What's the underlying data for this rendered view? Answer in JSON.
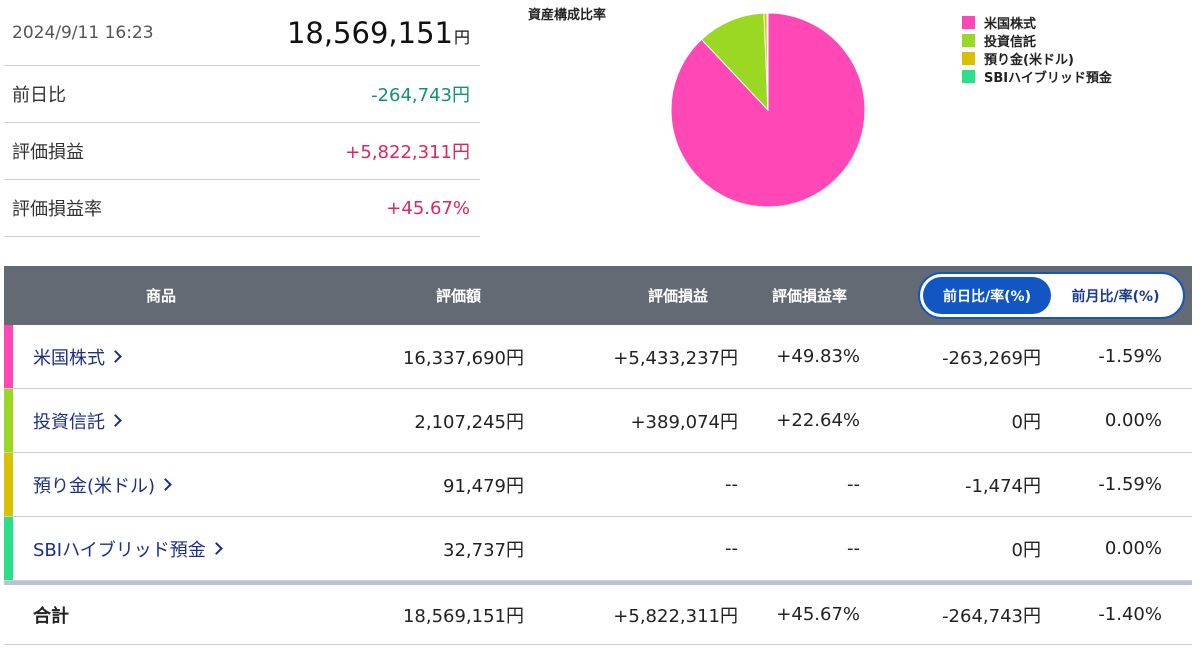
{
  "summary": {
    "datetime": "2024/9/11 16:23",
    "total": "18,569,151",
    "total_unit": "円",
    "rows": [
      {
        "label": "前日比",
        "value": "-264,743円",
        "sign": "neg"
      },
      {
        "label": "評価損益",
        "value": "+5,822,311円",
        "sign": "pos"
      },
      {
        "label": "評価損益率",
        "value": "+45.67%",
        "sign": "pos"
      }
    ]
  },
  "chart": {
    "title": "資産構成比率"
  },
  "chart_data": {
    "type": "pie",
    "title": "資産構成比率",
    "categories": [
      "米国株式",
      "投資信託",
      "預り金(米ドル)",
      "SBIハイブリッド預金"
    ],
    "values": [
      16337690,
      2107245,
      91479,
      32737
    ],
    "colors": [
      "#ff47b5",
      "#9ad823",
      "#d8c100",
      "#2be08a"
    ],
    "legend": "right"
  },
  "table": {
    "headers": {
      "product": "商品",
      "amount": "評価額",
      "pl": "評価損益",
      "pl_rate": "評価損益率"
    },
    "toggle": {
      "active": "前日比/率(%)",
      "inactive": "前月比/率(%)"
    },
    "rows": [
      {
        "name": "米国株式",
        "color": "#ff47b5",
        "amount": "16,337,690円",
        "pl": "+5,433,237円",
        "pl_sign": "pos",
        "pl_rate": "+49.83%",
        "pl_rate_sign": "pos",
        "day": "-263,269円",
        "day_sign": "neg",
        "day_rate": "-1.59%",
        "day_rate_sign": "neg"
      },
      {
        "name": "投資信託",
        "color": "#9ad823",
        "amount": "2,107,245円",
        "pl": "+389,074円",
        "pl_sign": "pos",
        "pl_rate": "+22.64%",
        "pl_rate_sign": "pos",
        "day": "0円",
        "day_sign": "",
        "day_rate": "0.00%",
        "day_rate_sign": ""
      },
      {
        "name": "預り金(米ドル)",
        "color": "#d8c100",
        "amount": "91,479円",
        "pl": "--",
        "pl_sign": "",
        "pl_rate": "--",
        "pl_rate_sign": "",
        "day": "-1,474円",
        "day_sign": "neg",
        "day_rate": "-1.59%",
        "day_rate_sign": "neg"
      },
      {
        "name": "SBIハイブリッド預金",
        "color": "#2be08a",
        "amount": "32,737円",
        "pl": "--",
        "pl_sign": "",
        "pl_rate": "--",
        "pl_rate_sign": "",
        "day": "0円",
        "day_sign": "",
        "day_rate": "0.00%",
        "day_rate_sign": ""
      }
    ],
    "total": {
      "label": "合計",
      "amount": "18,569,151円",
      "pl": "+5,822,311円",
      "pl_rate": "+45.67%",
      "day": "-264,743円",
      "day_rate": "-1.40%"
    }
  }
}
